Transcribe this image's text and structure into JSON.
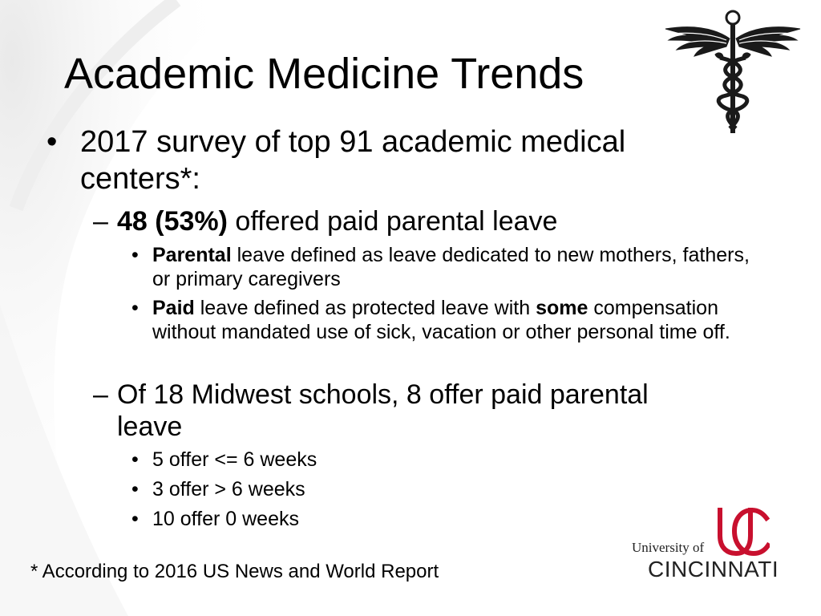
{
  "slide": {
    "title": "Academic Medicine Trends",
    "bullet_char": "•",
    "dash_char": "–",
    "items": [
      {
        "text": "2017 survey of top 91 academic medical centers*:",
        "sub": [
          {
            "bold": "48 (53%)",
            "text": " offered paid parental leave",
            "sub": [
              {
                "bold": "Parental",
                "text": " leave defined as leave dedicated to new mothers, fathers, or primary caregivers"
              },
              {
                "bold": "Paid",
                "text_before": " leave defined as protected leave with ",
                "bold2": "some",
                "text_after": " compensation without mandated use of sick, vacation or other personal time off."
              }
            ]
          },
          {
            "text": "Of 18 Midwest schools, 8 offer paid parental leave",
            "sub": [
              {
                "text": "5 offer <= 6 weeks"
              },
              {
                "text": "3 offer > 6 weeks"
              },
              {
                "text": "10 offer 0 weeks"
              }
            ]
          }
        ]
      }
    ],
    "footnote": "* According to 2016 US News and World Report"
  },
  "logo": {
    "university_of": "University of",
    "cincinnati": "CINCINNATI",
    "accent_color": "#c8102e"
  },
  "icons": {
    "top_right": "caduceus-icon"
  }
}
